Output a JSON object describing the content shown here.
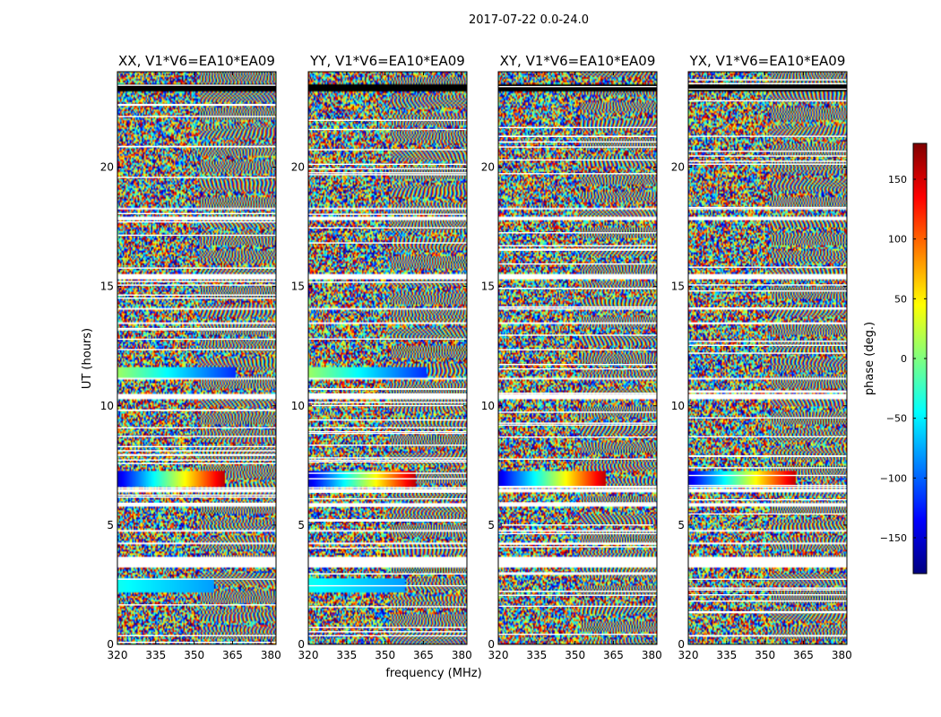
{
  "figure": {
    "suptitle": "2017-07-22 0.0-24.0"
  },
  "chart_data": {
    "type": "heatmap",
    "panel_titles": [
      "XX, V1*V6=EA10*EA09",
      "YY, V1*V6=EA10*EA09",
      "XY, V1*V6=EA10*EA09",
      "YX, V1*V6=EA10*EA09"
    ],
    "xlabel": "frequency (MHz)",
    "ylabel": "UT (hours)",
    "x_ticks": [
      320,
      335,
      350,
      365,
      380
    ],
    "y_ticks": [
      0,
      5,
      10,
      15,
      20
    ],
    "xlim": [
      320,
      382
    ],
    "ylim": [
      0,
      24
    ],
    "colorbar": {
      "label": "phase (deg.)",
      "ticks": [
        150,
        100,
        50,
        0,
        -50,
        -100,
        -150
      ],
      "tick_labels": [
        "150",
        "100",
        "50",
        "0",
        "−50",
        "−100",
        "−150"
      ],
      "range": [
        -180,
        180
      ],
      "colormap": "jet"
    },
    "flagged_blank_hours": [
      [
        3.2,
        3.65
      ],
      [
        4.2,
        4.3
      ],
      [
        4.7,
        4.8
      ],
      [
        5.8,
        5.9
      ],
      [
        6.4,
        6.5
      ],
      [
        10.3,
        10.5
      ],
      [
        11.1,
        11.2
      ],
      [
        13.4,
        13.5
      ],
      [
        14.0,
        14.1
      ],
      [
        15.3,
        15.5
      ],
      [
        17.8,
        17.9
      ],
      [
        18.2,
        18.3
      ]
    ],
    "dark_band_hours": [
      [
        23.2,
        23.45
      ]
    ],
    "coherent_bands": [
      {
        "hours": [
          6.6,
          7.3
        ],
        "panels": [
          "XX",
          "YY",
          "XY",
          "YX"
        ],
        "phase_start_deg": -150,
        "phase_end_deg": 160,
        "freq_end_mhz": 362
      },
      {
        "hours": [
          11.2,
          11.6
        ],
        "panels": [
          "XX",
          "YY"
        ],
        "phase_start_deg": 10,
        "phase_end_deg": -120,
        "freq_end_mhz": 366
      },
      {
        "hours": [
          2.2,
          2.8
        ],
        "panels": [
          "XX",
          "YY"
        ],
        "phase_start_deg": -40,
        "phase_end_deg": -80,
        "freq_end_mhz": 358
      }
    ]
  },
  "colors": {
    "jet_stops": [
      "#00007f",
      "#0000ff",
      "#007fff",
      "#00ffff",
      "#7fff7f",
      "#ffff00",
      "#ff7f00",
      "#ff0000",
      "#7f0000"
    ]
  }
}
